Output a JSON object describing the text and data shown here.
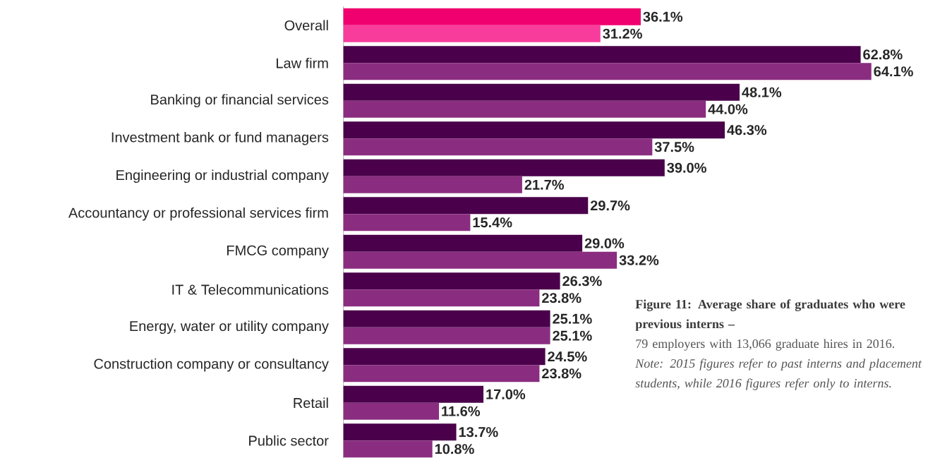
{
  "chart_data": {
    "type": "bar",
    "orientation": "horizontal",
    "title": "Figure 11: Average share of graduates who were previous interns –",
    "subtitle": "79 employers with 13,066 graduate hires in 2016.",
    "annotations": [
      "Note: 2015 figures refer to past interns and placement students, while 2016 figures refer only to interns."
    ],
    "categories": [
      "Overall",
      "Law firm",
      "Banking or financial services",
      "Investment bank or fund managers",
      "Engineering or industrial company",
      "Accountancy or professional services firm",
      "FMCG company",
      "IT & Telecommunications",
      "Energy, water or utility company",
      "Construction company or consultancy",
      "Retail",
      "Public sector"
    ],
    "series": [
      {
        "values": [
          36.1,
          62.8,
          48.1,
          46.3,
          39.0,
          29.7,
          29.0,
          26.3,
          25.1,
          24.5,
          17.0,
          13.7
        ],
        "colors": [
          "#f0006e",
          "#4a004a",
          "#4a004a",
          "#4a004a",
          "#4a004a",
          "#4a004a",
          "#4a004a",
          "#4a004a",
          "#4a004a",
          "#4a004a",
          "#4a004a",
          "#4a004a"
        ],
        "value_labels": [
          "36.1%",
          "62.8%",
          "48.1%",
          "46.3%",
          "39.0%",
          "29.7%",
          "29.0%",
          "26.3%",
          "25.1%",
          "24.5%",
          "17.0%",
          "13.7%"
        ]
      },
      {
        "values": [
          31.2,
          64.1,
          44.0,
          37.5,
          21.7,
          15.4,
          33.2,
          23.8,
          25.1,
          23.8,
          11.6,
          10.8
        ],
        "colors": [
          "#f83c9c",
          "#8a2d80",
          "#8a2d80",
          "#8a2d80",
          "#8a2d80",
          "#8a2d80",
          "#8a2d80",
          "#8a2d80",
          "#8a2d80",
          "#8a2d80",
          "#8a2d80",
          "#8a2d80"
        ],
        "value_labels": [
          "31.2%",
          "64.1%",
          "44.0%",
          "37.5%",
          "21.7%",
          "15.4%",
          "33.2%",
          "23.8%",
          "25.1%",
          "23.8%",
          "11.6%",
          "10.8%"
        ]
      }
    ]
  }
}
